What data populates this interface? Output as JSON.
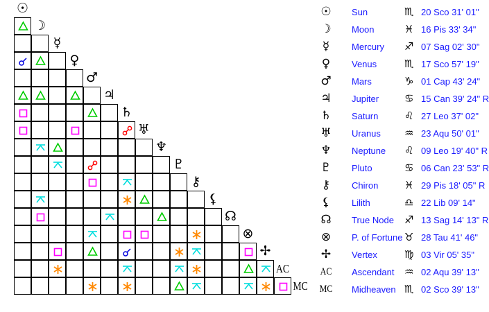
{
  "colors": {
    "trine": "#00cc00",
    "square": "#ff00ff",
    "conjunction": "#0000dd",
    "opposition": "#ff0000",
    "sextile": "#ff8800",
    "quincunx": "#00dddd"
  },
  "planets": [
    {
      "glyph": "☉",
      "icon": "sun-icon",
      "name": "Sun",
      "sign": "♏",
      "position": "20 Sco 31' 01\""
    },
    {
      "glyph": "☽",
      "icon": "moon-icon",
      "name": "Moon",
      "sign": "♓",
      "position": "16 Pis 33' 34\""
    },
    {
      "glyph": "☿",
      "icon": "mercury-icon",
      "name": "Mercury",
      "sign": "♐",
      "position": "07 Sag 02' 30\""
    },
    {
      "glyph": "♀",
      "icon": "venus-icon",
      "name": "Venus",
      "sign": "♏",
      "position": "17 Sco 57' 19\""
    },
    {
      "glyph": "♂",
      "icon": "mars-icon",
      "name": "Mars",
      "sign": "♑",
      "position": "01 Cap 43' 24\""
    },
    {
      "glyph": "♃",
      "icon": "jupiter-icon",
      "name": "Jupiter",
      "sign": "♋",
      "position": "15 Can 39' 24\" R"
    },
    {
      "glyph": "♄",
      "icon": "saturn-icon",
      "name": "Saturn",
      "sign": "♌",
      "position": "27 Leo 37' 02\""
    },
    {
      "glyph": "♅",
      "icon": "uranus-icon",
      "name": "Uranus",
      "sign": "♒",
      "position": "23 Aqu 50' 01\""
    },
    {
      "glyph": "♆",
      "icon": "neptune-icon",
      "name": "Neptune",
      "sign": "♌",
      "position": "09 Leo 19' 40\" R"
    },
    {
      "glyph": "♇",
      "icon": "pluto-icon",
      "name": "Pluto",
      "sign": "♋",
      "position": "06 Can 23' 53\" R"
    },
    {
      "glyph": "⚷",
      "icon": "chiron-icon",
      "name": "Chiron",
      "sign": "♓",
      "position": "29 Pis 18' 05\" R"
    },
    {
      "glyph": "⚸",
      "icon": "lilith-icon",
      "name": "Lilith",
      "sign": "♎",
      "position": "22 Lib 09' 14\""
    },
    {
      "glyph": "☊",
      "icon": "true-node-icon",
      "name": "True Node",
      "sign": "♐",
      "position": "13 Sag 14' 13\" R"
    },
    {
      "glyph": "⊗",
      "icon": "part-of-fortune-icon",
      "name": "P. of Fortune",
      "sign": "♉",
      "position": "28 Tau 41' 46\""
    },
    {
      "glyph": "✢",
      "icon": "vertex-icon",
      "name": "Vertex",
      "sign": "♍",
      "position": "03 Vir 05' 35\""
    },
    {
      "glyph": "AC",
      "icon": "ascendant-icon",
      "name": "Ascendant",
      "sign": "♒",
      "position": "02 Aqu 39' 13\""
    },
    {
      "glyph": "MC",
      "icon": "midheaven-icon",
      "name": "Midheaven",
      "sign": "♏",
      "position": "02 Sco 39' 13\""
    }
  ],
  "aspects": [
    [
      "trine"
    ],
    [],
    [
      "conjunction",
      "trine"
    ],
    [],
    [
      "trine",
      "trine",
      null,
      "trine"
    ],
    [
      "square",
      null,
      null,
      null,
      "trine"
    ],
    [
      "square",
      null,
      null,
      "square",
      null,
      null,
      "opposition"
    ],
    [
      null,
      "quincunx",
      "trine"
    ],
    [
      null,
      null,
      "quincunx",
      null,
      "opposition"
    ],
    [
      null,
      null,
      null,
      null,
      "square",
      null,
      "quincunx"
    ],
    [
      null,
      "quincunx",
      null,
      null,
      null,
      null,
      "sextile",
      "trine"
    ],
    [
      null,
      "square",
      null,
      null,
      null,
      "quincunx",
      null,
      null,
      "trine"
    ],
    [
      null,
      null,
      null,
      null,
      "quincunx",
      null,
      "square",
      "square",
      null,
      null,
      "sextile"
    ],
    [
      null,
      null,
      "square",
      null,
      "trine",
      null,
      "conjunction",
      null,
      null,
      "sextile",
      "quincunx",
      null,
      null,
      "square"
    ],
    [
      null,
      null,
      "sextile",
      null,
      null,
      null,
      "quincunx",
      null,
      null,
      "quincunx",
      "sextile",
      null,
      null,
      "trine",
      "quincunx"
    ],
    [
      null,
      null,
      null,
      null,
      "sextile",
      null,
      "sextile",
      null,
      null,
      "trine",
      "quincunx",
      null,
      null,
      "quincunx",
      "sextile",
      "square"
    ]
  ]
}
